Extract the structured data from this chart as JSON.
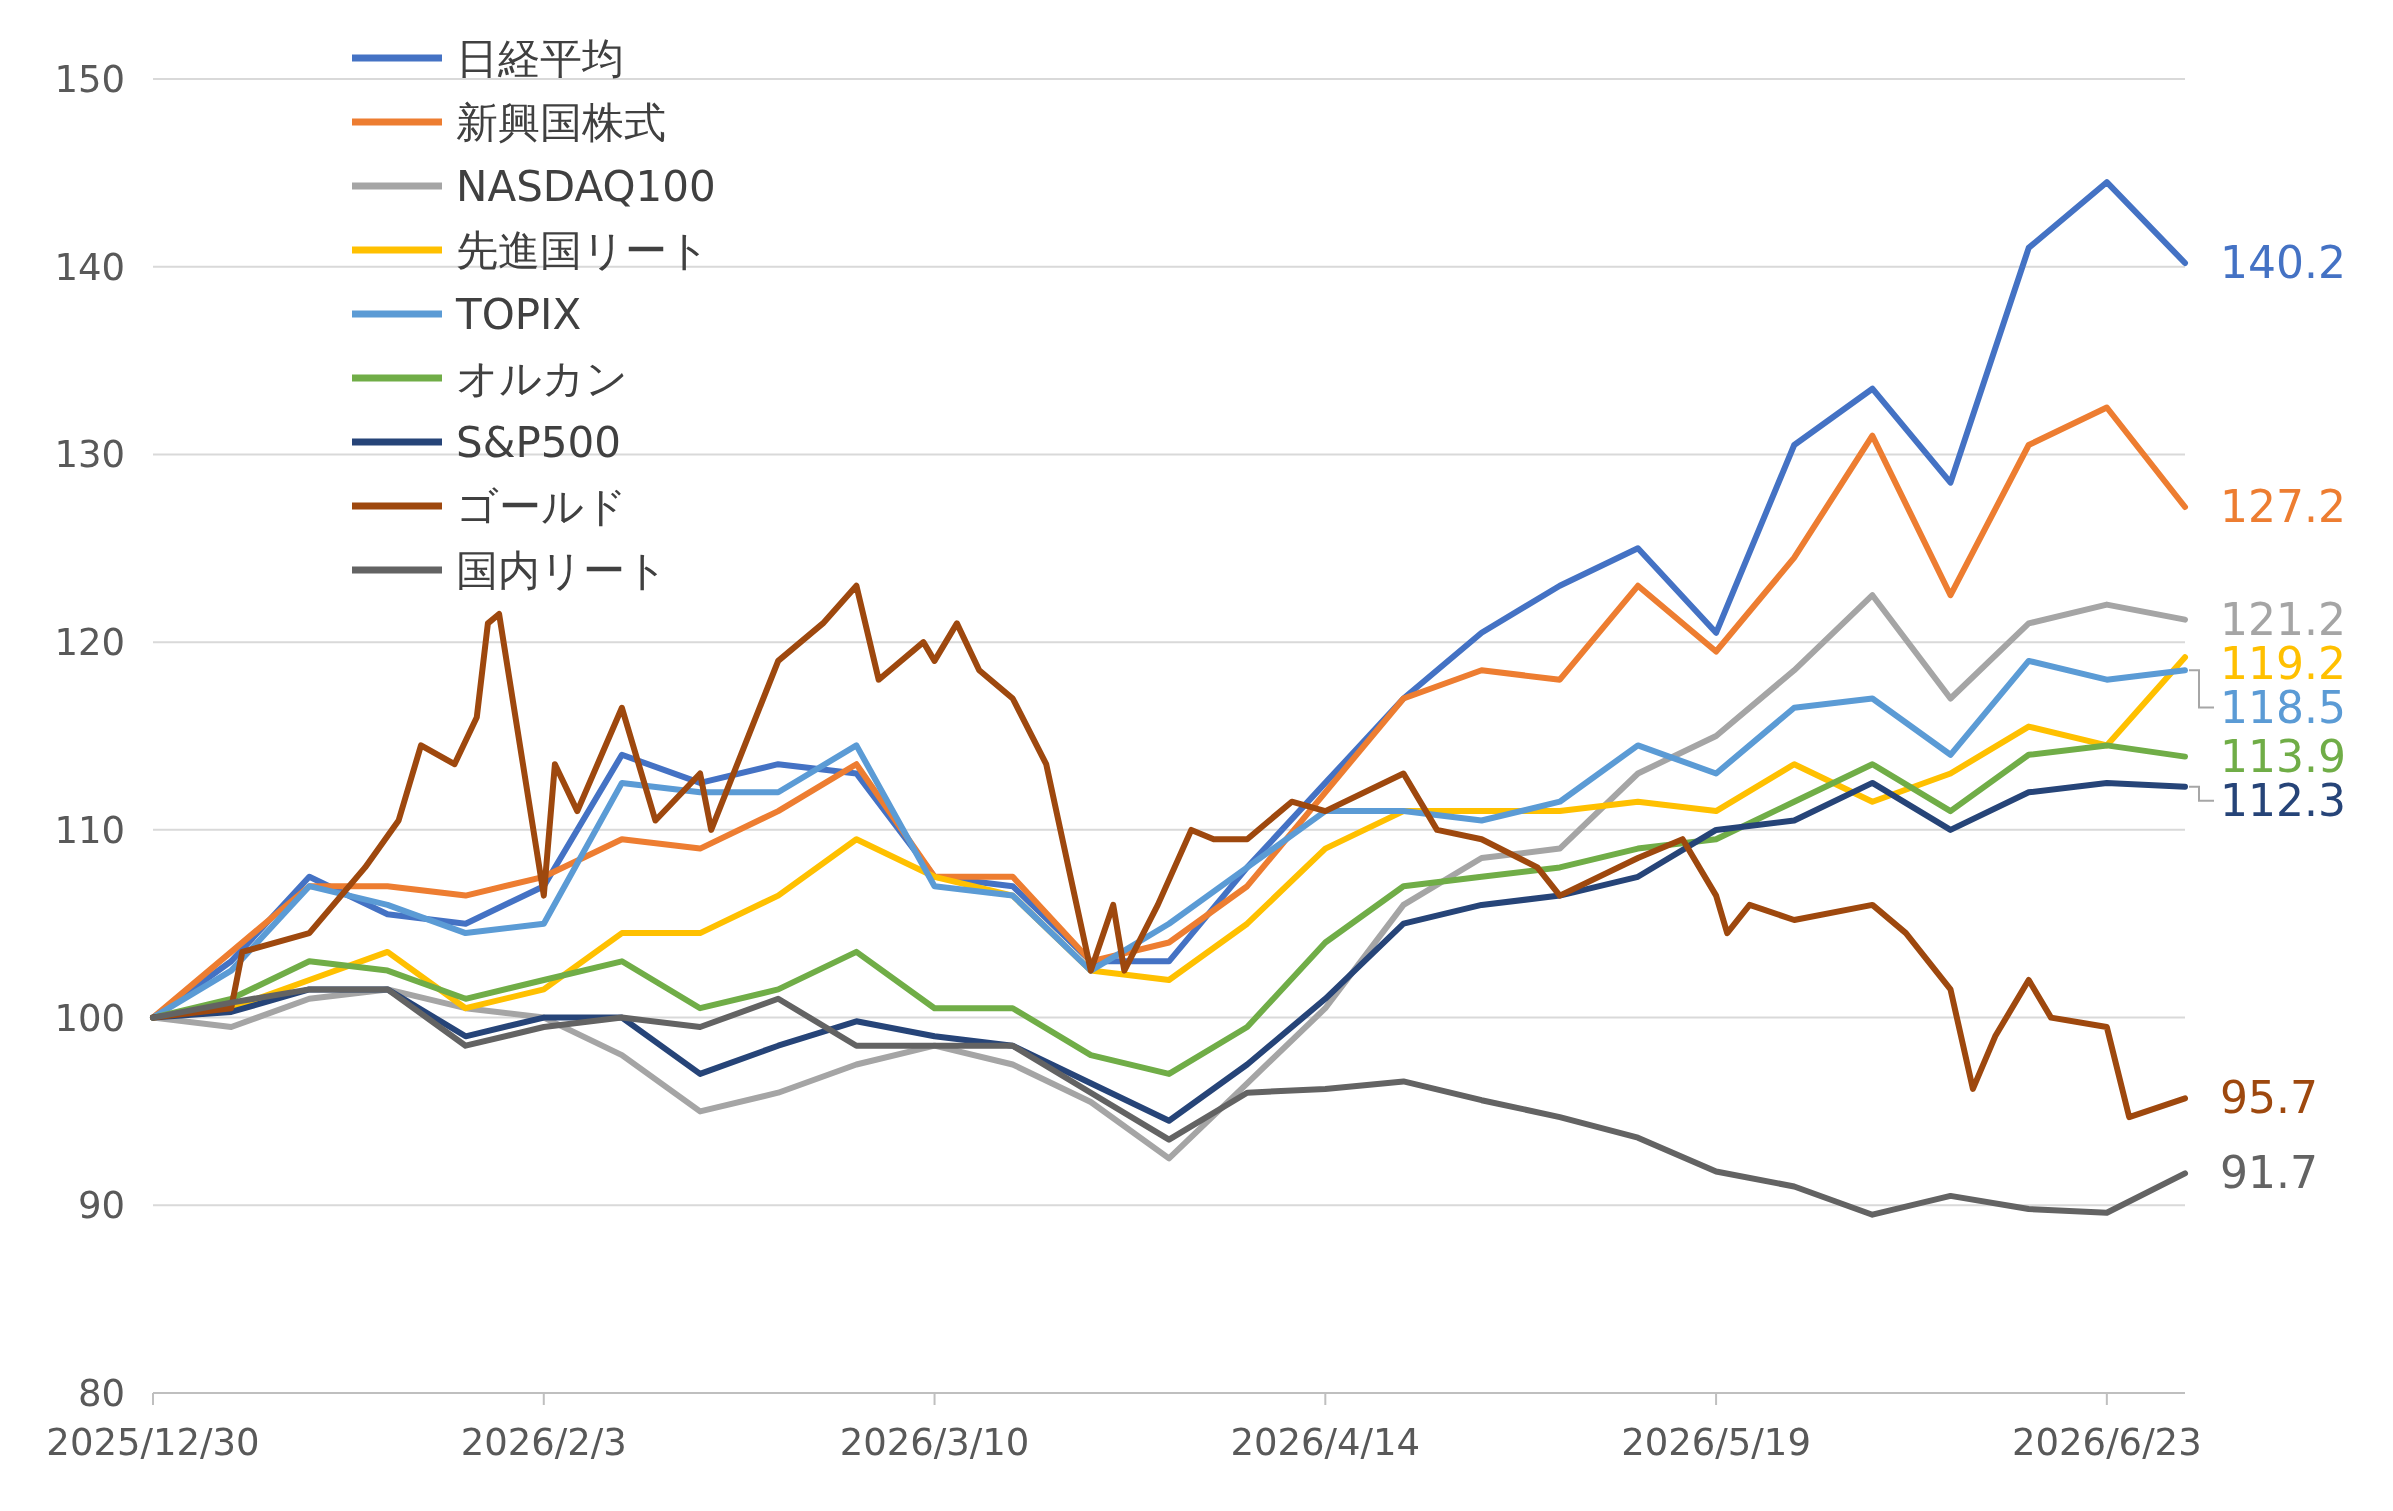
{
  "chart_data": {
    "type": "line",
    "x": [
      "2025-12-30",
      "2026-01-06",
      "2026-01-13",
      "2026-01-20",
      "2026-01-27",
      "2026-02-03",
      "2026-02-10",
      "2026-02-17",
      "2026-02-24",
      "2026-03-03",
      "2026-03-10",
      "2026-03-17",
      "2026-03-24",
      "2026-03-31",
      "2026-04-07",
      "2026-04-14",
      "2026-04-21",
      "2026-04-28",
      "2026-05-05",
      "2026-05-12",
      "2026-05-19",
      "2026-05-26",
      "2026-06-02",
      "2026-06-09",
      "2026-06-16",
      "2026-06-23",
      "2026-06-30"
    ],
    "xlim": [
      "2025-12-30",
      "2026-06-30"
    ],
    "xticks": [
      {
        "value": "2025-12-30",
        "label": "2025/12/30"
      },
      {
        "value": "2026-02-03",
        "label": "2026/2/3"
      },
      {
        "value": "2026-03-10",
        "label": "2026/3/10"
      },
      {
        "value": "2026-04-14",
        "label": "2026/4/14"
      },
      {
        "value": "2026-05-19",
        "label": "2026/5/19"
      },
      {
        "value": "2026-06-23",
        "label": "2026/6/23"
      }
    ],
    "ylim": [
      80,
      150
    ],
    "yticks": [
      80,
      90,
      100,
      110,
      120,
      130,
      140,
      150
    ],
    "grid": "y",
    "legend": "top left",
    "marker": "none",
    "line_style": "solid",
    "series": [
      {
        "name": "日経平均",
        "color": "#4472c4",
        "values": [
          100,
          103,
          107.5,
          105.5,
          105,
          107,
          114,
          112.5,
          113.5,
          113,
          107.5,
          107,
          103,
          103,
          108,
          112.5,
          117,
          120.5,
          123,
          125,
          120.5,
          130.5,
          133.5,
          128.5,
          141,
          144.5,
          140.2
        ],
        "value_labels": [
          null,
          null,
          null,
          null,
          null,
          null,
          null,
          null,
          null,
          null,
          null,
          null,
          null,
          null,
          null,
          null,
          null,
          null,
          null,
          null,
          null,
          null,
          null,
          null,
          null,
          null,
          "140.2"
        ]
      },
      {
        "name": "新興国株式",
        "color": "#ed7d31",
        "values": [
          100,
          103.5,
          107,
          107,
          106.5,
          107.5,
          109.5,
          109,
          111,
          113.5,
          107.5,
          107.5,
          103,
          104,
          107,
          112,
          117,
          118.5,
          118,
          123,
          119.5,
          124.5,
          131,
          122.5,
          130.5,
          132.5,
          127.2
        ],
        "value_labels": [
          null,
          null,
          null,
          null,
          null,
          null,
          null,
          null,
          null,
          null,
          null,
          null,
          null,
          null,
          null,
          null,
          null,
          null,
          null,
          null,
          null,
          null,
          null,
          null,
          null,
          null,
          "127.2"
        ]
      },
      {
        "name": "NASDAQ100",
        "color": "#a5a5a5",
        "values": [
          100,
          99.5,
          101,
          101.5,
          100.5,
          100,
          98,
          95,
          96,
          97.5,
          98.5,
          97.5,
          95.5,
          92.5,
          96.5,
          100.5,
          106,
          108.5,
          109,
          113,
          115,
          118.5,
          122.5,
          117,
          121,
          122,
          121.2
        ],
        "value_labels": [
          null,
          null,
          null,
          null,
          null,
          null,
          null,
          null,
          null,
          null,
          null,
          null,
          null,
          null,
          null,
          null,
          null,
          null,
          null,
          null,
          null,
          null,
          null,
          null,
          null,
          null,
          "121.2"
        ]
      },
      {
        "name": "先進国リート",
        "color": "#ffc000",
        "values": [
          100,
          100.5,
          102,
          103.5,
          100.5,
          101.5,
          104.5,
          104.5,
          106.5,
          109.5,
          107.5,
          106.5,
          102.5,
          102,
          105,
          109,
          111,
          111,
          111,
          111.5,
          111,
          113.5,
          111.5,
          113,
          115.5,
          114.5,
          119.2
        ],
        "value_labels": [
          null,
          null,
          null,
          null,
          null,
          null,
          null,
          null,
          null,
          null,
          null,
          null,
          null,
          null,
          null,
          null,
          null,
          null,
          null,
          null,
          null,
          null,
          null,
          null,
          null,
          null,
          "119.2"
        ]
      },
      {
        "name": "TOPIX",
        "color": "#5b9bd5",
        "values": [
          100,
          102.5,
          107,
          106,
          104.5,
          105,
          112.5,
          112,
          112,
          114.5,
          107,
          106.5,
          102.5,
          105,
          108,
          111,
          111,
          110.5,
          111.5,
          114.5,
          113,
          116.5,
          117,
          114,
          119,
          118,
          118.5
        ],
        "value_labels": [
          null,
          null,
          null,
          null,
          null,
          null,
          null,
          null,
          null,
          null,
          null,
          null,
          null,
          null,
          null,
          null,
          null,
          null,
          null,
          null,
          null,
          null,
          null,
          null,
          null,
          null,
          "118.5"
        ]
      },
      {
        "name": "オルカン",
        "color": "#70ad47",
        "values": [
          100,
          101,
          103,
          102.5,
          101,
          102,
          103,
          100.5,
          101.5,
          103.5,
          100.5,
          100.5,
          98,
          97,
          99.5,
          104,
          107,
          107.5,
          108,
          109,
          109.5,
          111.5,
          113.5,
          111,
          114,
          114.5,
          113.9
        ],
        "value_labels": [
          null,
          null,
          null,
          null,
          null,
          null,
          null,
          null,
          null,
          null,
          null,
          null,
          null,
          null,
          null,
          null,
          null,
          null,
          null,
          null,
          null,
          null,
          null,
          null,
          null,
          null,
          "113.9"
        ]
      },
      {
        "name": "S&P500",
        "color": "#264478",
        "values": [
          100,
          100.3,
          101.5,
          101.5,
          99,
          100,
          100,
          97,
          98.5,
          99.8,
          99,
          98.5,
          96.5,
          94.5,
          97.5,
          101,
          105,
          106,
          106.5,
          107.5,
          110,
          110.5,
          112.5,
          110,
          112,
          112.5,
          112.3
        ],
        "value_labels": [
          null,
          null,
          null,
          null,
          null,
          null,
          null,
          null,
          null,
          null,
          null,
          null,
          null,
          null,
          null,
          null,
          null,
          null,
          null,
          null,
          null,
          null,
          null,
          null,
          null,
          null,
          "112.3"
        ]
      },
      {
        "name": "ゴールド",
        "color": "#9e480e",
        "x": [
          "2025-12-30",
          "2026-01-06",
          "2026-01-07",
          "2026-01-13",
          "2026-01-18",
          "2026-01-21",
          "2026-01-23",
          "2026-01-26",
          "2026-01-28",
          "2026-01-29",
          "2026-01-30",
          "2026-02-03",
          "2026-02-04",
          "2026-02-06",
          "2026-02-10",
          "2026-02-13",
          "2026-02-17",
          "2026-02-18",
          "2026-02-24",
          "2026-02-28",
          "2026-03-03",
          "2026-03-05",
          "2026-03-09",
          "2026-03-10",
          "2026-03-12",
          "2026-03-14",
          "2026-03-17",
          "2026-03-20",
          "2026-03-24",
          "2026-03-26",
          "2026-03-27",
          "2026-03-30",
          "2026-04-02",
          "2026-04-04",
          "2026-04-07",
          "2026-04-11",
          "2026-04-14",
          "2026-04-21",
          "2026-04-24",
          "2026-04-28",
          "2026-05-03",
          "2026-05-05",
          "2026-05-12",
          "2026-05-16",
          "2026-05-19",
          "2026-05-20",
          "2026-05-22",
          "2026-05-26",
          "2026-06-02",
          "2026-06-05",
          "2026-06-09",
          "2026-06-11",
          "2026-06-13",
          "2026-06-16",
          "2026-06-18",
          "2026-06-23",
          "2026-06-25",
          "2026-06-30"
        ],
        "values": [
          100,
          100.5,
          103.5,
          104.5,
          108,
          110.5,
          114.5,
          113.5,
          116,
          121,
          121.5,
          106.5,
          113.5,
          111,
          116.5,
          110.5,
          113,
          110,
          119,
          121,
          123,
          118,
          120,
          119,
          121,
          118.5,
          117,
          113.5,
          102.5,
          106,
          102.5,
          106,
          110,
          109.5,
          109.5,
          111.5,
          111,
          113,
          110,
          109.5,
          108,
          106.5,
          108.5,
          109.5,
          106.5,
          104.5,
          106,
          105.2,
          106,
          104.5,
          101.5,
          96.2,
          99,
          102,
          100,
          99.5,
          94.7,
          95.7
        ],
        "value_labels": [
          null,
          null,
          null,
          null,
          null,
          null,
          null,
          null,
          null,
          null,
          null,
          null,
          null,
          null,
          null,
          null,
          null,
          null,
          null,
          null,
          null,
          null,
          null,
          null,
          null,
          null,
          null,
          null,
          null,
          null,
          null,
          null,
          null,
          null,
          null,
          null,
          null,
          null,
          null,
          null,
          null,
          null,
          null,
          null,
          null,
          null,
          null,
          null,
          null,
          null,
          null,
          null,
          null,
          null,
          null,
          null,
          null,
          "95.7"
        ]
      },
      {
        "name": "国内リート",
        "color": "#636363",
        "values": [
          100,
          100.8,
          101.5,
          101.5,
          98.5,
          99.5,
          100,
          99.5,
          101,
          98.5,
          98.5,
          98.5,
          96,
          93.5,
          96,
          96.2,
          96.6,
          95.6,
          94.7,
          93.6,
          91.8,
          91,
          89.5,
          90.5,
          89.8,
          89.6,
          91.7
        ],
        "value_labels": [
          null,
          null,
          null,
          null,
          null,
          null,
          null,
          null,
          null,
          null,
          null,
          null,
          null,
          null,
          null,
          null,
          null,
          null,
          null,
          null,
          null,
          null,
          null,
          null,
          null,
          null,
          "91.7"
        ]
      }
    ]
  }
}
